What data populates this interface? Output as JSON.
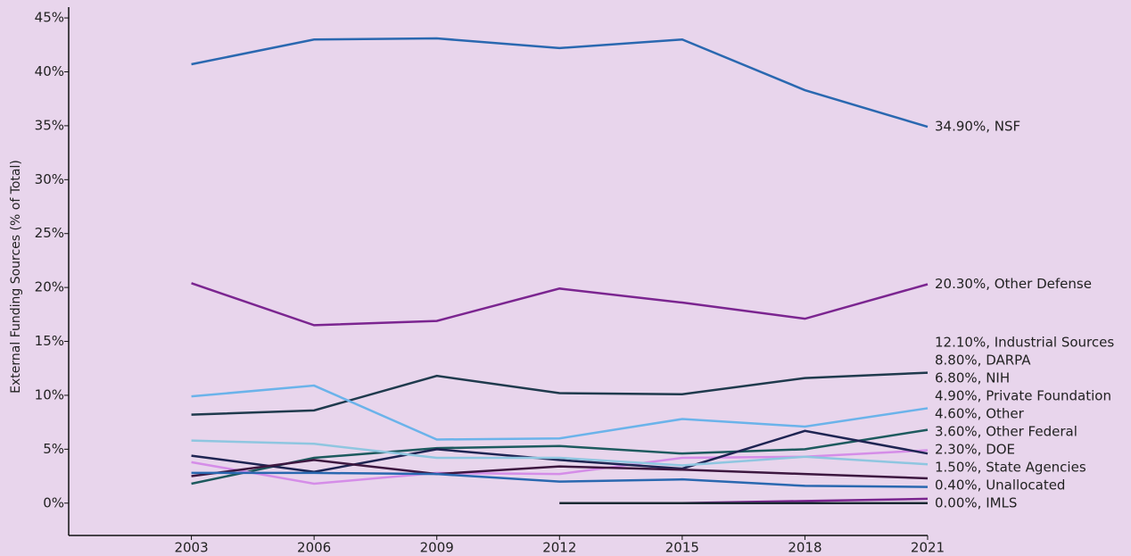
{
  "chart_data": {
    "type": "line",
    "y_label": "External Funding Sources (% of Total)",
    "x": [
      2003,
      2006,
      2009,
      2012,
      2015,
      2018,
      2021
    ],
    "xlim": [
      2000,
      2021
    ],
    "xticks": [
      2003,
      2006,
      2009,
      2012,
      2015,
      2018,
      2021
    ],
    "ylim": [
      -3,
      46
    ],
    "yticks": [
      {
        "value": 0,
        "label": "0%"
      },
      {
        "value": 5,
        "label": "5%"
      },
      {
        "value": 10,
        "label": "10%"
      },
      {
        "value": 15,
        "label": "15%"
      },
      {
        "value": 20,
        "label": "20%"
      },
      {
        "value": 25,
        "label": "25%"
      },
      {
        "value": 30,
        "label": "30%"
      },
      {
        "value": 35,
        "label": "35%"
      },
      {
        "value": 40,
        "label": "40%"
      },
      {
        "value": 45,
        "label": "45%"
      }
    ],
    "series": [
      {
        "name": "NSF",
        "label": "34.90%, NSF",
        "color": "#2a68b0",
        "values": [
          40.7,
          43.0,
          43.1,
          42.2,
          43.0,
          38.3,
          34.9
        ]
      },
      {
        "name": "Other Defense",
        "label": "20.30%, Other Defense",
        "color": "#7b2590",
        "values": [
          20.4,
          16.5,
          16.9,
          19.9,
          18.6,
          17.1,
          20.3
        ]
      },
      {
        "name": "Industrial Sources",
        "label": "12.10%, Industrial Sources",
        "color": "#1f3a4d",
        "values": [
          8.2,
          8.6,
          11.8,
          10.2,
          10.1,
          11.6,
          12.1
        ]
      },
      {
        "name": "DARPA",
        "label": "8.80%, DARPA",
        "color": "#6bb3ea",
        "values": [
          9.9,
          10.9,
          5.9,
          6.0,
          7.8,
          7.1,
          8.8
        ]
      },
      {
        "name": "NIH",
        "label": "6.80%, NIH",
        "color": "#1d5a5e",
        "values": [
          1.8,
          4.2,
          5.1,
          5.3,
          4.6,
          5.0,
          6.8
        ]
      },
      {
        "name": "Private Foundation",
        "label": "4.90%, Private Foundation",
        "color": "#d58de8",
        "values": [
          3.8,
          1.8,
          2.8,
          2.7,
          4.2,
          4.3,
          4.9
        ]
      },
      {
        "name": "Other",
        "label": "4.60%, Other",
        "color": "#1e2452",
        "values": [
          4.4,
          2.9,
          5.0,
          4.0,
          3.2,
          6.7,
          4.6
        ]
      },
      {
        "name": "Other Federal",
        "label": "3.60%, Other Federal",
        "color": "#8fc6e0",
        "values": [
          5.8,
          5.5,
          4.2,
          4.2,
          3.5,
          4.3,
          3.6
        ]
      },
      {
        "name": "DOE",
        "label": "2.30%, DOE",
        "color": "#3d1740",
        "values": [
          2.5,
          4.0,
          2.7,
          3.4,
          3.1,
          2.7,
          2.3
        ]
      },
      {
        "name": "State Agencies",
        "label": "1.50%, State Agencies",
        "color": "#2a68b0",
        "values": [
          2.8,
          2.8,
          2.7,
          2.0,
          2.2,
          1.6,
          1.5
        ]
      },
      {
        "name": "Unallocated",
        "label": "0.40%, Unallocated",
        "color": "#7b2590",
        "values": [
          null,
          null,
          null,
          0,
          0,
          0.2,
          0.4
        ]
      },
      {
        "name": "IMLS",
        "label": "0.00%, IMLS",
        "color": "#1a2a33",
        "values": [
          null,
          null,
          null,
          0,
          0,
          0,
          0
        ]
      }
    ]
  }
}
